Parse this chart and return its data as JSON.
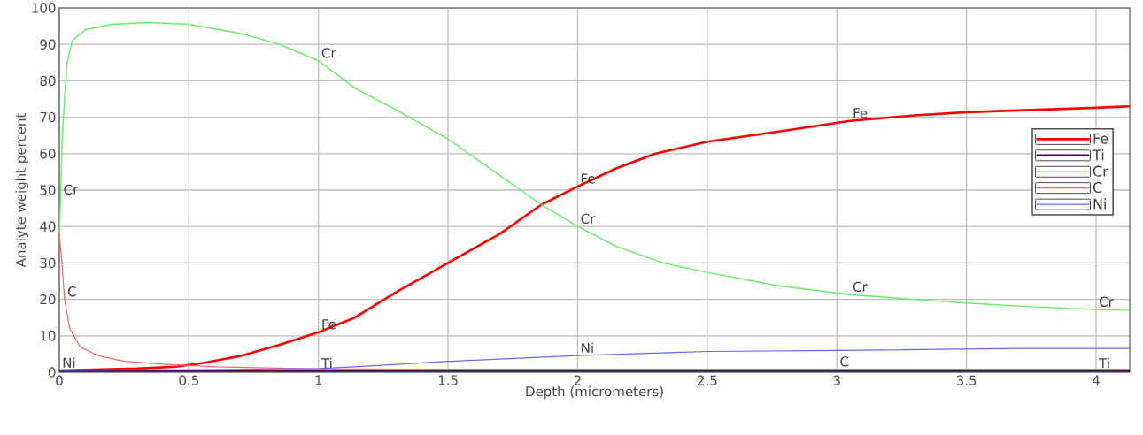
{
  "chart_data": {
    "type": "line",
    "xlabel": "Depth (micrometers)",
    "ylabel": "Analyte weight percent",
    "xlim": [
      0,
      4.13
    ],
    "ylim": [
      0,
      100
    ],
    "xticks": [
      0,
      0.5,
      1,
      1.5,
      2,
      2.5,
      3,
      3.5,
      4
    ],
    "yticks": [
      0,
      10,
      20,
      30,
      40,
      50,
      60,
      70,
      80,
      90,
      100
    ],
    "grid": true,
    "legend": "right",
    "marker": "none",
    "line_style": "solid",
    "series": [
      {
        "name": "Fe",
        "color": "#ff0000",
        "x": [
          0,
          0.1,
          0.3,
          0.45,
          0.55,
          0.7,
          0.85,
          1,
          1.14,
          1.3,
          1.5,
          1.7,
          1.86,
          2,
          2.15,
          2.3,
          2.5,
          2.77,
          3.05,
          3.3,
          3.5,
          3.75,
          4,
          4.13
        ],
        "values": [
          0.5,
          null,
          1,
          1.5,
          2.5,
          4.5,
          7.5,
          11,
          15,
          22,
          30,
          38,
          46,
          51,
          56,
          60,
          63.3,
          66,
          69,
          70.5,
          71.4,
          72,
          72.6,
          73
        ]
      },
      {
        "name": "Ti",
        "color": "#4b0050",
        "x": [
          0,
          1,
          2,
          3,
          4,
          4.13
        ],
        "values": [
          0.4,
          0.4,
          0.4,
          0.4,
          0.4,
          0.4
        ]
      },
      {
        "name": "Cr",
        "color": "#66ee66",
        "x": [
          0,
          0.005,
          0.01,
          0.02,
          0.03,
          0.05,
          0.1,
          0.2,
          0.35,
          0.5,
          0.7,
          0.85,
          1,
          1.14,
          1.3,
          1.5,
          1.7,
          1.86,
          2,
          2.15,
          2.33,
          2.5,
          2.77,
          3.05,
          3.3,
          3.5,
          3.75,
          4,
          4.13
        ],
        "values": [
          38,
          48,
          62,
          75,
          85,
          91,
          94,
          95.5,
          96,
          95.5,
          93,
          90,
          85.5,
          78,
          72,
          64,
          54,
          46,
          40,
          34.5,
          30,
          27.4,
          23.8,
          21.3,
          20,
          19,
          18,
          17.2,
          17
        ]
      },
      {
        "name": "C",
        "color": "#ff6666",
        "x": [
          0,
          0.01,
          0.02,
          0.04,
          0.08,
          0.15,
          0.25,
          0.4,
          0.6,
          1,
          1.5,
          2,
          3,
          4.13
        ],
        "values": [
          38,
          30,
          20,
          12,
          7,
          4.5,
          3,
          2.2,
          1.5,
          0.9,
          0.8,
          0.8,
          0.8,
          0.8
        ]
      },
      {
        "name": "Ni",
        "color": "#6666ff",
        "x": [
          0,
          0.5,
          1,
          1.14,
          1.5,
          2,
          2.5,
          3,
          3.7,
          4.13
        ],
        "values": [
          0.5,
          0.7,
          1,
          1.5,
          3,
          4.6,
          5.7,
          6,
          6.5,
          6.5
        ]
      }
    ],
    "annotations": [
      {
        "text": "Cr",
        "x": 0.005,
        "y": 48
      },
      {
        "text": "C",
        "x": 0.02,
        "y": 20
      },
      {
        "text": "Ni",
        "x": 0,
        "y": 0.5
      },
      {
        "text": "Cr",
        "x": 1,
        "y": 85.5
      },
      {
        "text": "Fe",
        "x": 1,
        "y": 11
      },
      {
        "text": "Ti",
        "x": 1,
        "y": 0.4
      },
      {
        "text": "Fe",
        "x": 2,
        "y": 51
      },
      {
        "text": "Cr",
        "x": 2,
        "y": 40
      },
      {
        "text": "Ni",
        "x": 2,
        "y": 4.6
      },
      {
        "text": "Fe",
        "x": 3.05,
        "y": 69
      },
      {
        "text": "Cr",
        "x": 3.05,
        "y": 21.3
      },
      {
        "text": "C",
        "x": 3,
        "y": 0.8
      },
      {
        "text": "Cr",
        "x": 4,
        "y": 17.2
      },
      {
        "text": "Ti",
        "x": 4,
        "y": 0.4
      }
    ]
  }
}
